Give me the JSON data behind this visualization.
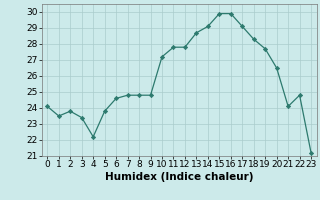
{
  "x": [
    0,
    1,
    2,
    3,
    4,
    5,
    6,
    7,
    8,
    9,
    10,
    11,
    12,
    13,
    14,
    15,
    16,
    17,
    18,
    19,
    20,
    21,
    22,
    23
  ],
  "y": [
    24.1,
    23.5,
    23.8,
    23.4,
    22.2,
    23.8,
    24.6,
    24.8,
    24.8,
    24.8,
    27.2,
    27.8,
    27.8,
    28.7,
    29.1,
    29.9,
    29.9,
    29.1,
    28.3,
    27.7,
    26.5,
    24.1,
    24.8,
    21.2
  ],
  "line_color": "#2d7a6e",
  "marker": "D",
  "marker_size": 2.2,
  "bg_color": "#cceaea",
  "grid_color": "#aacccc",
  "xlabel": "Humidex (Indice chaleur)",
  "xlabel_fontsize": 7.5,
  "tick_fontsize": 6.5,
  "ylim": [
    21,
    30.5
  ],
  "yticks": [
    21,
    22,
    23,
    24,
    25,
    26,
    27,
    28,
    29,
    30
  ],
  "xlim": [
    -0.5,
    23.5
  ],
  "xticks": [
    0,
    1,
    2,
    3,
    4,
    5,
    6,
    7,
    8,
    9,
    10,
    11,
    12,
    13,
    14,
    15,
    16,
    17,
    18,
    19,
    20,
    21,
    22,
    23
  ]
}
